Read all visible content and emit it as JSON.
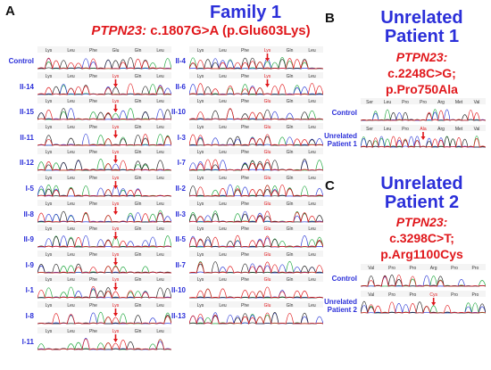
{
  "panelA": {
    "letter": "A",
    "title": "Family 1",
    "gene": "PTPN23:",
    "variant": "c.1807G>A (p.Glu603Lys)",
    "codons_normal": [
      "Lys",
      "Leu",
      "Phe",
      "Glu",
      "Gln",
      "Leu"
    ],
    "codons_variant": [
      "Lys",
      "Leu",
      "Phe",
      "Lys",
      "Gln",
      "Leu"
    ],
    "col1": [
      "Control",
      "II-14",
      "II-15",
      "II-11",
      "II-12",
      "I-5",
      "II-8",
      "II-9",
      "I-9",
      "I-1",
      "I-8",
      "I-11"
    ],
    "col2": [
      "II-4",
      "II-6",
      "II-10",
      "I-3",
      "I-7",
      "II-2",
      "II-3",
      "II-5",
      "II-7",
      "II-10",
      "II-13"
    ]
  },
  "panelB": {
    "letter": "B",
    "title_line1": "Unrelated",
    "title_line2": "Patient 1",
    "gene": "PTPN23:",
    "variant": "c.2248C>G;",
    "protein": "p.Pro750Ala",
    "codons_normal": [
      "Ser",
      "Leu",
      "Pro",
      "Pro",
      "Arg",
      "Met",
      "Val"
    ],
    "codons_variant": [
      "Ser",
      "Leu",
      "Pro",
      "Ala",
      "Arg",
      "Met",
      "Val"
    ],
    "rows": [
      {
        "label_1": "Control",
        "label_2": ""
      },
      {
        "label_1": "Unrelated",
        "label_2": "Patient 1"
      }
    ]
  },
  "panelC": {
    "letter": "C",
    "title_line1": "Unrelated",
    "title_line2": "Patient 2",
    "gene": "PTPN23:",
    "variant": "c.3298C>T;",
    "protein": "p.Arg1100Cys",
    "codons_normal": [
      "Val",
      "Pro",
      "Pro",
      "Arg",
      "Pro",
      "Pro"
    ],
    "codons_variant": [
      "Val",
      "Pro",
      "Pro",
      "Cys",
      "Pro",
      "Pro"
    ],
    "rows": [
      {
        "label_1": "Control",
        "label_2": ""
      },
      {
        "label_1": "Unrelated",
        "label_2": "Patient 2"
      }
    ]
  },
  "colors": {
    "title_blue": "#2b2fd9",
    "variant_red": "#e0171b",
    "trace_green": "#1aa53a",
    "trace_blue": "#2d3bd6",
    "trace_black": "#222222",
    "trace_red": "#e0171b",
    "arrow_red": "#e0171b"
  }
}
